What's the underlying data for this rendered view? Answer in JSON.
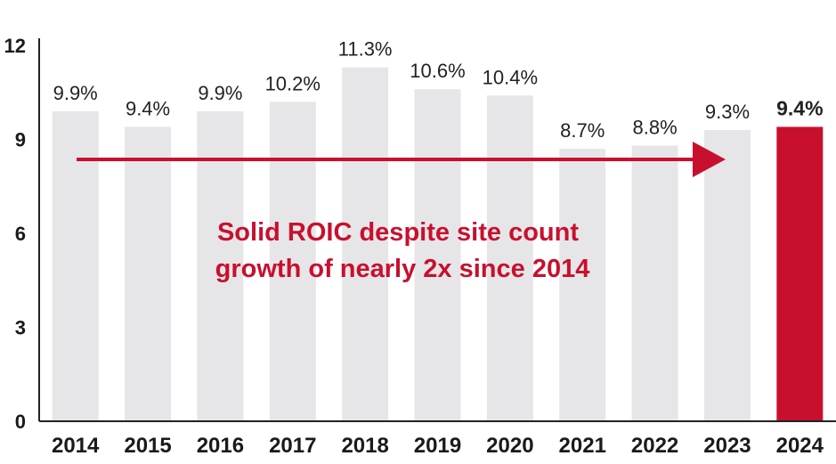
{
  "chart_data": {
    "type": "bar",
    "categories": [
      "2014",
      "2015",
      "2016",
      "2017",
      "2018",
      "2019",
      "2020",
      "2021",
      "2022",
      "2023",
      "2024"
    ],
    "values": [
      9.9,
      9.4,
      9.9,
      10.2,
      11.3,
      10.6,
      10.4,
      8.7,
      8.8,
      9.3,
      9.4
    ],
    "data_labels": [
      "9.9%",
      "9.4%",
      "9.9%",
      "10.2%",
      "11.3%",
      "10.6%",
      "10.4%",
      "8.7%",
      "8.8%",
      "9.3%",
      "9.4%"
    ],
    "highlight_index": 10,
    "ylim": [
      0,
      12
    ],
    "yticks": [
      0,
      3,
      6,
      9,
      12
    ],
    "ytick_labels": [
      "0",
      "3",
      "6",
      "9",
      "12"
    ],
    "grid": false,
    "title": "",
    "xlabel": "",
    "ylabel": "",
    "annotation": {
      "lines": [
        "Solid ROIC despite site count",
        "growth of nearly 2x since 2014"
      ],
      "arrow": true
    },
    "colors": {
      "bar": "#e6e6e8",
      "highlight": "#c8102e",
      "accent": "#c8102e",
      "axis": "#222222"
    }
  }
}
